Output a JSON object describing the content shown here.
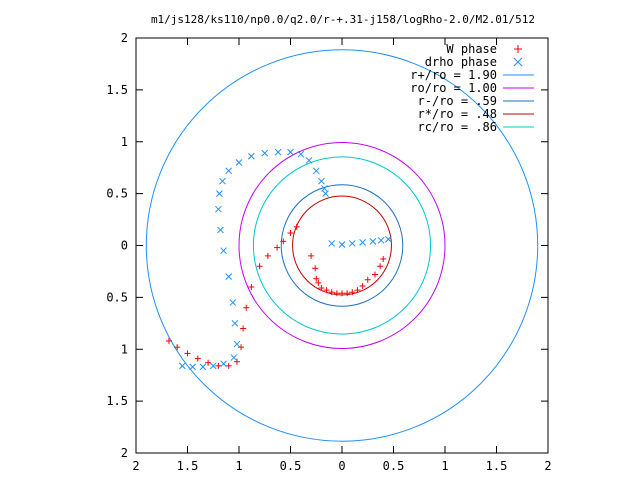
{
  "chart_data": {
    "type": "scatter",
    "title": "m1/js128/ks110/np0.0/q2.0/r-+.31-j158/logRho-2.0/M2.01/512",
    "xlabel": "",
    "ylabel": "",
    "xlim": [
      -2,
      2
    ],
    "ylim": [
      -2,
      2
    ],
    "grid": false,
    "legend_placement": "top-right",
    "x_tick_labels": [
      "2",
      "1.5",
      "1",
      "0.5",
      "0",
      "0.5",
      "1",
      "1.5",
      "2"
    ],
    "y_tick_labels": [
      "2",
      "1.5",
      "1",
      "0.5",
      "0",
      "0.5",
      "1",
      "1.5",
      "2"
    ],
    "x_ticks": [
      -2,
      -1.5,
      -1,
      -0.5,
      0,
      0.5,
      1,
      1.5,
      2
    ],
    "y_ticks": [
      2,
      1.5,
      1,
      0.5,
      0,
      -0.5,
      -1,
      -1.5,
      -2
    ],
    "series": [
      {
        "name": "W phase",
        "kind": "points",
        "marker": "+",
        "color": "#ff0000",
        "x": [
          -1.68,
          -1.6,
          -1.5,
          -1.4,
          -1.3,
          -1.2,
          -1.1,
          -1.02,
          -0.98,
          -0.96,
          -0.93,
          -0.88,
          -0.8,
          -0.72,
          -0.63,
          -0.57,
          -0.5,
          -0.44,
          -0.3,
          -0.26,
          -0.25,
          -0.23,
          -0.2,
          -0.15,
          -0.1,
          -0.05,
          0.0,
          0.05,
          0.1,
          0.15,
          0.2,
          0.25,
          0.32,
          0.37,
          0.4
        ],
        "y": [
          -0.92,
          -0.98,
          -1.04,
          -1.09,
          -1.13,
          -1.16,
          -1.16,
          -1.12,
          -0.98,
          -0.8,
          -0.6,
          -0.4,
          -0.2,
          -0.1,
          -0.02,
          0.04,
          0.12,
          0.18,
          -0.1,
          -0.22,
          -0.32,
          -0.36,
          -0.41,
          -0.43,
          -0.45,
          -0.46,
          -0.46,
          -0.46,
          -0.45,
          -0.43,
          -0.39,
          -0.33,
          -0.28,
          -0.2,
          -0.13
        ]
      },
      {
        "name": "drho phase",
        "kind": "points",
        "marker": "x",
        "color": "#1e90ff",
        "x": [
          -1.55,
          -1.45,
          -1.35,
          -1.25,
          -1.15,
          -1.05,
          -1.02,
          -1.04,
          -1.06,
          -1.1,
          -1.15,
          -1.18,
          -1.2,
          -1.19,
          -1.16,
          -1.1,
          -1.0,
          -0.88,
          -0.75,
          -0.62,
          -0.5,
          -0.4,
          -0.32,
          -0.25,
          -0.2,
          -0.17,
          -0.16,
          -0.1,
          0.0,
          0.1,
          0.2,
          0.3,
          0.38,
          0.45
        ],
        "y": [
          -1.16,
          -1.17,
          -1.17,
          -1.16,
          -1.14,
          -1.08,
          -0.95,
          -0.75,
          -0.55,
          -0.3,
          -0.05,
          0.15,
          0.35,
          0.5,
          0.62,
          0.72,
          0.8,
          0.86,
          0.89,
          0.9,
          0.9,
          0.88,
          0.82,
          0.72,
          0.62,
          0.55,
          0.5,
          0.02,
          0.01,
          0.02,
          0.03,
          0.04,
          0.05,
          0.06
        ]
      },
      {
        "name": "r+/ro = 1.90",
        "kind": "circle",
        "radius": 1.9,
        "color": "#1e90ff"
      },
      {
        "name": "ro/ro = 1.00",
        "kind": "circle",
        "radius": 1.0,
        "color": "#c000ff"
      },
      {
        "name": "r-/ro = .59",
        "kind": "circle",
        "radius": 0.59,
        "color": "#1e6fbf"
      },
      {
        "name": "r*/ro = .48",
        "kind": "circle",
        "radius": 0.48,
        "color": "#c00000"
      },
      {
        "name": "rc/ro = .86",
        "kind": "circle",
        "radius": 0.86,
        "color": "#00c8d0"
      }
    ]
  }
}
